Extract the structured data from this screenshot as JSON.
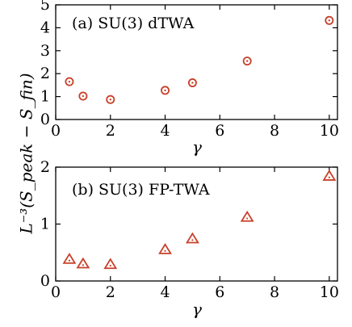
{
  "chart_data": [
    {
      "type": "scatter",
      "title": "(a) SU(3) dTWA",
      "xlabel": "γ",
      "ylabel": "L⁻³(S_peak − S_fin)",
      "xlim": [
        0,
        10.3
      ],
      "ylim": [
        0,
        5
      ],
      "xticks": [
        0,
        2,
        4,
        6,
        8,
        10
      ],
      "yticks": [
        0,
        1,
        2,
        3,
        4,
        5
      ],
      "marker": "circle-dot",
      "color": "#c8402a",
      "x": [
        0.5,
        1,
        2,
        4,
        5,
        7,
        10
      ],
      "y": [
        1.65,
        1.02,
        0.87,
        1.27,
        1.6,
        2.55,
        4.32
      ]
    },
    {
      "type": "scatter",
      "title": "(b) SU(3) FP-TWA",
      "xlabel": "γ",
      "ylabel": "",
      "xlim": [
        0,
        10.3
      ],
      "ylim": [
        0,
        2
      ],
      "xticks": [
        0,
        2,
        4,
        6,
        8,
        10
      ],
      "yticks": [
        0,
        1,
        2
      ],
      "marker": "triangle-dot",
      "color": "#c8402a",
      "x": [
        0.5,
        1,
        2,
        4,
        5,
        7,
        10
      ],
      "y": [
        0.38,
        0.3,
        0.29,
        0.55,
        0.74,
        1.12,
        1.84
      ]
    }
  ]
}
